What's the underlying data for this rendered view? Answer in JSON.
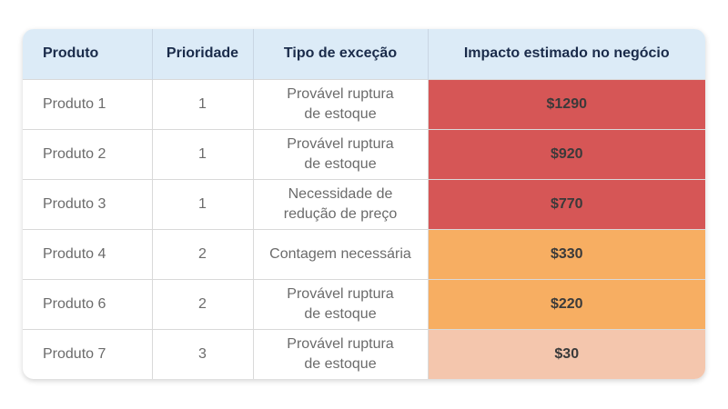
{
  "headers": {
    "produto": "Produto",
    "prioridade": "Prioridade",
    "tipo": "Tipo de exceção",
    "impacto": "Impacto estimado no negócio"
  },
  "colors": {
    "header_bg": "#dcebf7",
    "impact_high": "#d65656",
    "impact_medium": "#f7ae62",
    "impact_low": "#f4c6ad"
  },
  "rows": [
    {
      "produto": "Produto 1",
      "prioridade": "1",
      "tipo_l1": "Provável ruptura",
      "tipo_l2": "de estoque",
      "impacto": "$1290",
      "color": "#d65656"
    },
    {
      "produto": "Produto 2",
      "prioridade": "1",
      "tipo_l1": "Provável ruptura",
      "tipo_l2": "de estoque",
      "impacto": "$920",
      "color": "#d65656"
    },
    {
      "produto": "Produto 3",
      "prioridade": "1",
      "tipo_l1": "Necessidade de",
      "tipo_l2": "redução de preço",
      "impacto": "$770",
      "color": "#d65656"
    },
    {
      "produto": "Produto 4",
      "prioridade": "2",
      "tipo_l1": "Contagem necessária",
      "tipo_l2": "",
      "impacto": "$330",
      "color": "#f7ae62"
    },
    {
      "produto": "Produto 6",
      "prioridade": "2",
      "tipo_l1": "Provável ruptura",
      "tipo_l2": "de estoque",
      "impacto": "$220",
      "color": "#f7ae62"
    },
    {
      "produto": "Produto 7",
      "prioridade": "3",
      "tipo_l1": "Provável ruptura",
      "tipo_l2": "de estoque",
      "impacto": "$30",
      "color": "#f4c6ad"
    }
  ]
}
